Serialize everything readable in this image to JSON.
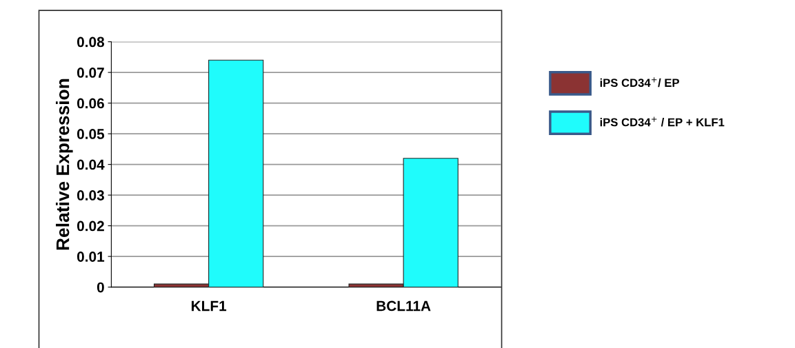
{
  "chart_data": {
    "type": "bar",
    "ylabel": "Relative Expression",
    "categories": [
      "KLF1",
      "BCL11A"
    ],
    "series": [
      {
        "name": "iPS CD34$^{+}$/ EP",
        "color": "#8b3333",
        "values": [
          0.001,
          0.001
        ]
      },
      {
        "name": "iPS CD34$^{+}$ / EP + KLF1",
        "color": "#1ffcfc",
        "values": [
          0.074,
          0.042
        ]
      }
    ],
    "ylim": [
      0,
      0.08
    ],
    "yticks": [
      0,
      0.01,
      0.02,
      0.03,
      0.04,
      0.05,
      0.06,
      0.07,
      0.08
    ],
    "grid": "y",
    "legend": "right"
  }
}
